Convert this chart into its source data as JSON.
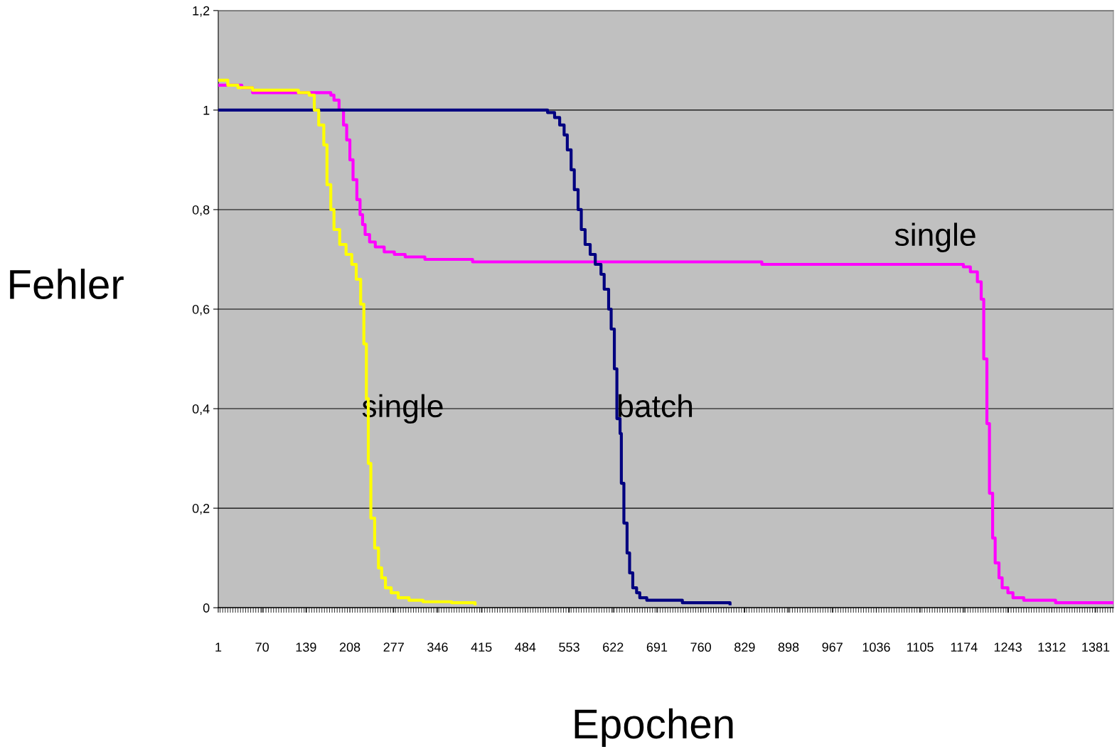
{
  "chart_data": {
    "type": "step",
    "xlabel": "Epochen",
    "ylabel": "Fehler",
    "xlim": [
      1,
      1409
    ],
    "xticks": [
      1,
      70,
      139,
      208,
      277,
      346,
      415,
      484,
      553,
      622,
      691,
      760,
      829,
      898,
      967,
      1036,
      1105,
      1174,
      1243,
      1312,
      1381
    ],
    "ylim": [
      0,
      1.2
    ],
    "yticks": [
      {
        "value": 0,
        "label": "0"
      },
      {
        "value": 0.2,
        "label": "0,2"
      },
      {
        "value": 0.4,
        "label": "0,4"
      },
      {
        "value": 0.6,
        "label": "0,6"
      },
      {
        "value": 0.8,
        "label": "0,8"
      },
      {
        "value": 1,
        "label": "1"
      },
      {
        "value": 1.2,
        "label": "1,2"
      }
    ],
    "grid": "y",
    "legend": false,
    "series": [
      {
        "name": "single",
        "color": "#ffff00",
        "x": [
          1,
          16,
          32,
          55,
          116,
          127,
          144,
          152,
          159,
          167,
          172,
          178,
          183,
          192,
          202,
          211,
          218,
          225,
          230,
          234,
          237,
          241,
          247,
          253,
          258,
          264,
          273,
          284,
          301,
          323,
          368,
          405
        ],
        "values": [
          1.06,
          1.05,
          1.045,
          1.04,
          1.04,
          1.035,
          1.03,
          1.0,
          0.97,
          0.93,
          0.85,
          0.8,
          0.76,
          0.73,
          0.71,
          0.69,
          0.66,
          0.61,
          0.53,
          0.42,
          0.29,
          0.18,
          0.12,
          0.08,
          0.06,
          0.04,
          0.03,
          0.02,
          0.015,
          0.012,
          0.01,
          0.008
        ]
      },
      {
        "name": "batch",
        "color": "#000080",
        "x": [
          1,
          508,
          519,
          530,
          538,
          545,
          550,
          556,
          561,
          567,
          572,
          578,
          586,
          594,
          603,
          608,
          615,
          619,
          624,
          628,
          633,
          635,
          639,
          644,
          648,
          653,
          659,
          664,
          675,
          731,
          806
        ],
        "values": [
          1.0,
          1.0,
          0.995,
          0.985,
          0.97,
          0.95,
          0.92,
          0.88,
          0.84,
          0.8,
          0.76,
          0.73,
          0.71,
          0.69,
          0.67,
          0.64,
          0.6,
          0.56,
          0.48,
          0.38,
          0.35,
          0.25,
          0.17,
          0.11,
          0.07,
          0.04,
          0.03,
          0.02,
          0.015,
          0.01,
          0.008
        ]
      },
      {
        "name": "single",
        "color": "#ff00ff",
        "x": [
          1,
          38,
          55,
          116,
          167,
          178,
          183,
          191,
          198,
          203,
          208,
          213,
          219,
          224,
          228,
          232,
          239,
          248,
          262,
          278,
          295,
          326,
          401,
          856,
          1173,
          1184,
          1195,
          1201,
          1205,
          1210,
          1214,
          1219,
          1223,
          1229,
          1234,
          1243,
          1251,
          1268,
          1318,
          1409
        ],
        "values": [
          1.05,
          1.045,
          1.035,
          1.035,
          1.035,
          1.03,
          1.02,
          1.0,
          0.97,
          0.94,
          0.9,
          0.86,
          0.82,
          0.79,
          0.77,
          0.75,
          0.735,
          0.725,
          0.715,
          0.71,
          0.705,
          0.7,
          0.695,
          0.69,
          0.685,
          0.675,
          0.655,
          0.62,
          0.5,
          0.37,
          0.23,
          0.14,
          0.09,
          0.06,
          0.04,
          0.03,
          0.02,
          0.015,
          0.01,
          0.01
        ]
      }
    ]
  }
}
